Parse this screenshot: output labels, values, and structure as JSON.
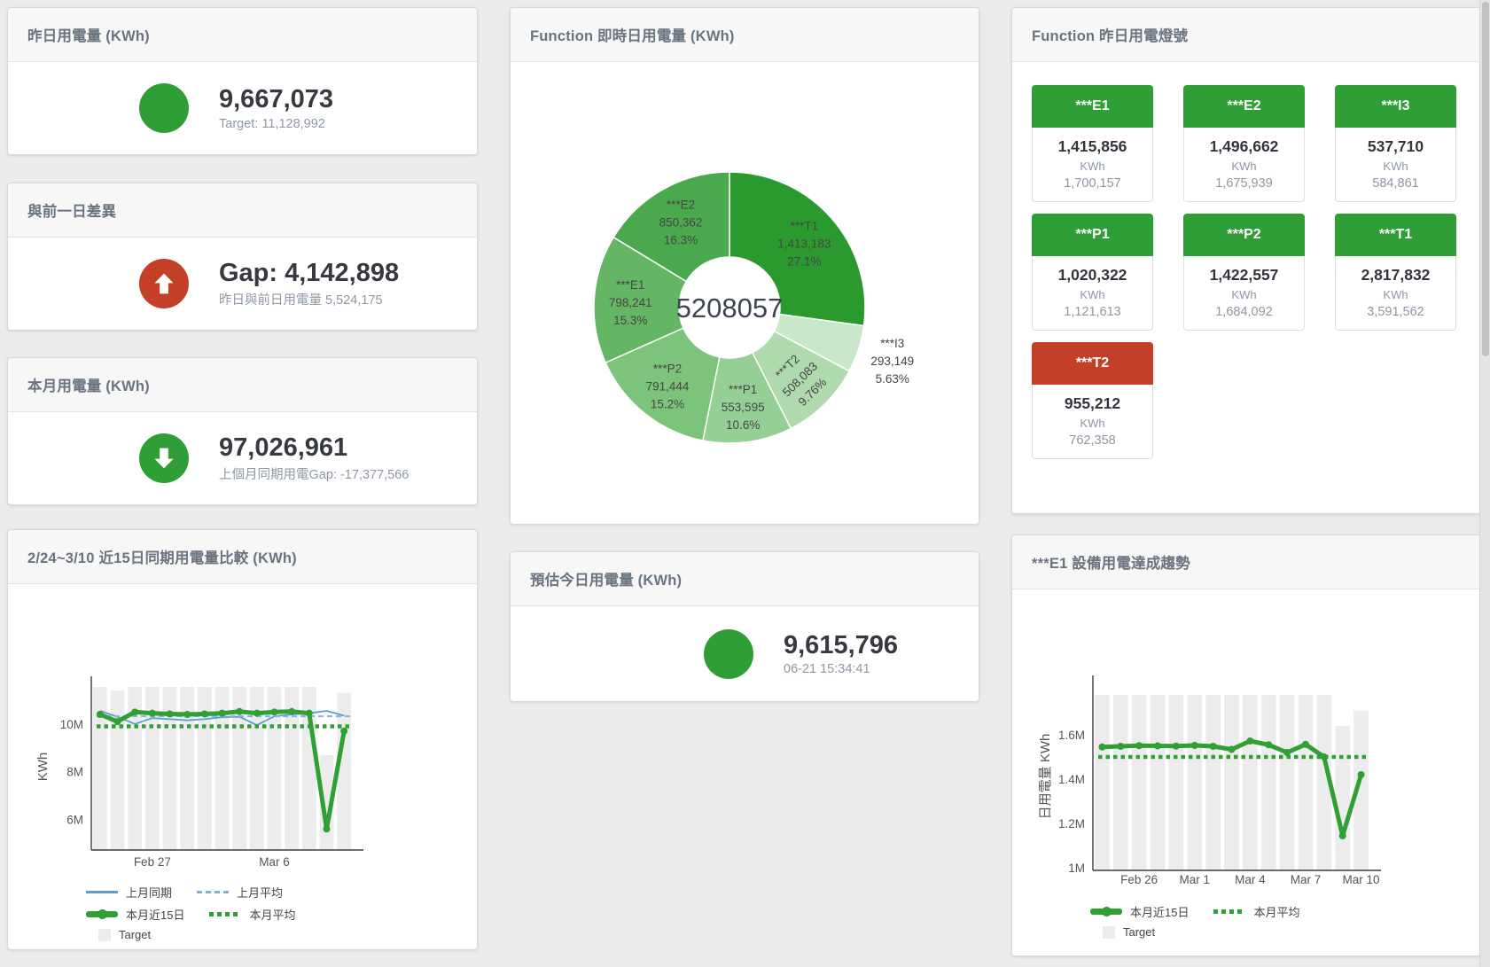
{
  "page": {
    "background": "#ebebeb"
  },
  "colors": {
    "green": "#2f9e36",
    "red": "#c43f27",
    "bar_gray": "#ececec",
    "blue_line": "#5f9bd3",
    "blue_dash": "#7fb2e5",
    "green_line": "#31a034"
  },
  "cards": {
    "yesterday": {
      "title": "昨日用電量 (KWh)",
      "value": "9,667,073",
      "subtitle": "Target: 11,128,992",
      "status_color": "#2f9e36"
    },
    "day_gap": {
      "title": "與前一日差異",
      "value": "Gap: 4,142,898",
      "subtitle": "昨日與前日用電量 5,524,175",
      "status_color": "#c43f27",
      "icon": "arrow-up-icon"
    },
    "month": {
      "title": "本月用電量 (KWh)",
      "value": "97,026,961",
      "subtitle": "上個月同期用電Gap: -17,377,566",
      "status_color": "#2f9e36",
      "icon": "arrow-down-icon"
    },
    "forecast": {
      "title": "預估今日用電量 (KWh)",
      "value": "9,615,796",
      "subtitle": "06-21 15:34:41",
      "status_color": "#2f9e36"
    },
    "lights": {
      "title": "Function 昨日用電燈號",
      "status_colors": {
        "green": "#2f9e36",
        "red": "#c43f27"
      },
      "tiles": [
        {
          "label": "***E1",
          "value": "1,415,856",
          "unit": "KWh",
          "target": "1,700,157",
          "status": "green"
        },
        {
          "label": "***E2",
          "value": "1,496,662",
          "unit": "KWh",
          "target": "1,675,939",
          "status": "green"
        },
        {
          "label": "***I3",
          "value": "537,710",
          "unit": "KWh",
          "target": "584,861",
          "status": "green"
        },
        {
          "label": "***P1",
          "value": "1,020,322",
          "unit": "KWh",
          "target": "1,121,613",
          "status": "green"
        },
        {
          "label": "***P2",
          "value": "1,422,557",
          "unit": "KWh",
          "target": "1,684,092",
          "status": "green"
        },
        {
          "label": "***T1",
          "value": "2,817,832",
          "unit": "KWh",
          "target": "3,591,562",
          "status": "green"
        },
        {
          "label": "***T2",
          "value": "955,212",
          "unit": "KWh",
          "target": "762,358",
          "status": "red"
        }
      ]
    }
  },
  "chart_data": [
    {
      "id": "donut",
      "type": "pie",
      "title": "Function 即時日用電量 (KWh)",
      "center_total": "5208057",
      "slices": [
        {
          "name": "***T1",
          "value": 1413183,
          "value_label": "1,413,183",
          "pct": "27.1%",
          "color": "#2b9a2e",
          "label": "inside"
        },
        {
          "name": "***I3",
          "value": 293149,
          "value_label": "293,149",
          "pct": "5.63%",
          "color": "#c9e7c9",
          "label": "outside"
        },
        {
          "name": "***T2",
          "value": 508083,
          "value_label": "508,083",
          "pct": "9.76%",
          "color": "#aedaae",
          "label": "inside-rotated"
        },
        {
          "name": "***P1",
          "value": 553595,
          "value_label": "553,595",
          "pct": "10.6%",
          "color": "#95cf95",
          "label": "inside"
        },
        {
          "name": "***P2",
          "value": 791444,
          "value_label": "791,444",
          "pct": "15.2%",
          "color": "#7cc47b",
          "label": "inside"
        },
        {
          "name": "***E1",
          "value": 798241,
          "value_label": "798,241",
          "pct": "15.3%",
          "color": "#64b564",
          "label": "inside"
        },
        {
          "name": "***E2",
          "value": 850362,
          "value_label": "850,362",
          "pct": "16.3%",
          "color": "#49a94c",
          "label": "inside"
        }
      ]
    },
    {
      "id": "compare15",
      "type": "bar",
      "title": "2/24~3/10 近15日同期用電量比較 (KWh)",
      "ylabel": "KWh",
      "x_count": 15,
      "x_ticks": [
        {
          "i": 3,
          "label": "Feb 27"
        },
        {
          "i": 10,
          "label": "Mar 6"
        }
      ],
      "y_ticks": [
        {
          "v": 6,
          "label": "6M"
        },
        {
          "v": 8,
          "label": "8M"
        },
        {
          "v": 10,
          "label": "10M"
        }
      ],
      "ylim": [
        4.72,
        11.7
      ],
      "unit": "millions of KWh",
      "bars": {
        "name": "Target",
        "color": "#ececec",
        "values": [
          11.55,
          11.4,
          11.55,
          11.55,
          11.55,
          11.55,
          11.55,
          11.55,
          11.55,
          11.55,
          11.55,
          11.55,
          11.55,
          8.7,
          11.3
        ]
      },
      "series": [
        {
          "name": "上月同期",
          "style": "line",
          "color": "#5f9bd3",
          "values": [
            10.55,
            10.3,
            10.0,
            10.25,
            10.2,
            10.15,
            10.2,
            10.28,
            10.3,
            9.95,
            10.32,
            10.4,
            10.45,
            10.55,
            10.35
          ]
        },
        {
          "name": "上月平均",
          "style": "dash",
          "color": "#7fb2e5",
          "constant": 10.32
        },
        {
          "name": "本月平均",
          "style": "dot",
          "color": "#31a034",
          "constant": 9.9
        },
        {
          "name": "本月近15日",
          "style": "thick",
          "color": "#31a034",
          "values": [
            10.4,
            10.1,
            10.5,
            10.45,
            10.42,
            10.4,
            10.42,
            10.45,
            10.52,
            10.45,
            10.5,
            10.52,
            10.45,
            5.6,
            9.7
          ]
        }
      ],
      "legend_rows": [
        [
          "上月同期",
          "上月平均"
        ],
        [
          "本月近15日",
          "本月平均"
        ],
        [
          "Target"
        ]
      ]
    },
    {
      "id": "e1trend",
      "type": "bar",
      "title": "***E1 設備用電達成趨勢",
      "ylabel": "日用電量 KWh",
      "x_count": 15,
      "x_ticks": [
        {
          "i": 2,
          "label": "Feb 26"
        },
        {
          "i": 5,
          "label": "Mar 1"
        },
        {
          "i": 8,
          "label": "Mar 4"
        },
        {
          "i": 11,
          "label": "Mar 7"
        },
        {
          "i": 14,
          "label": "Mar 10"
        }
      ],
      "y_ticks": [
        {
          "v": 1.0,
          "label": "1M"
        },
        {
          "v": 1.2,
          "label": "1.2M"
        },
        {
          "v": 1.4,
          "label": "1.4M"
        },
        {
          "v": 1.6,
          "label": "1.6M"
        }
      ],
      "ylim": [
        0.988,
        1.836
      ],
      "unit": "millions of KWh",
      "bars": {
        "name": "Target",
        "color": "#ececec",
        "values": [
          1.78,
          1.78,
          1.78,
          1.78,
          1.78,
          1.78,
          1.78,
          1.78,
          1.78,
          1.78,
          1.78,
          1.78,
          1.78,
          1.64,
          1.71
        ]
      },
      "series": [
        {
          "name": "本月平均",
          "style": "dot",
          "color": "#31a034",
          "constant": 1.5
        },
        {
          "name": "本月近15日",
          "style": "thick",
          "color": "#31a034",
          "values": [
            1.545,
            1.548,
            1.551,
            1.55,
            1.549,
            1.552,
            1.548,
            1.534,
            1.572,
            1.555,
            1.52,
            1.557,
            1.5,
            1.144,
            1.42
          ]
        }
      ],
      "legend_rows": [
        [
          "本月近15日",
          "本月平均"
        ],
        [
          "Target"
        ]
      ]
    }
  ]
}
